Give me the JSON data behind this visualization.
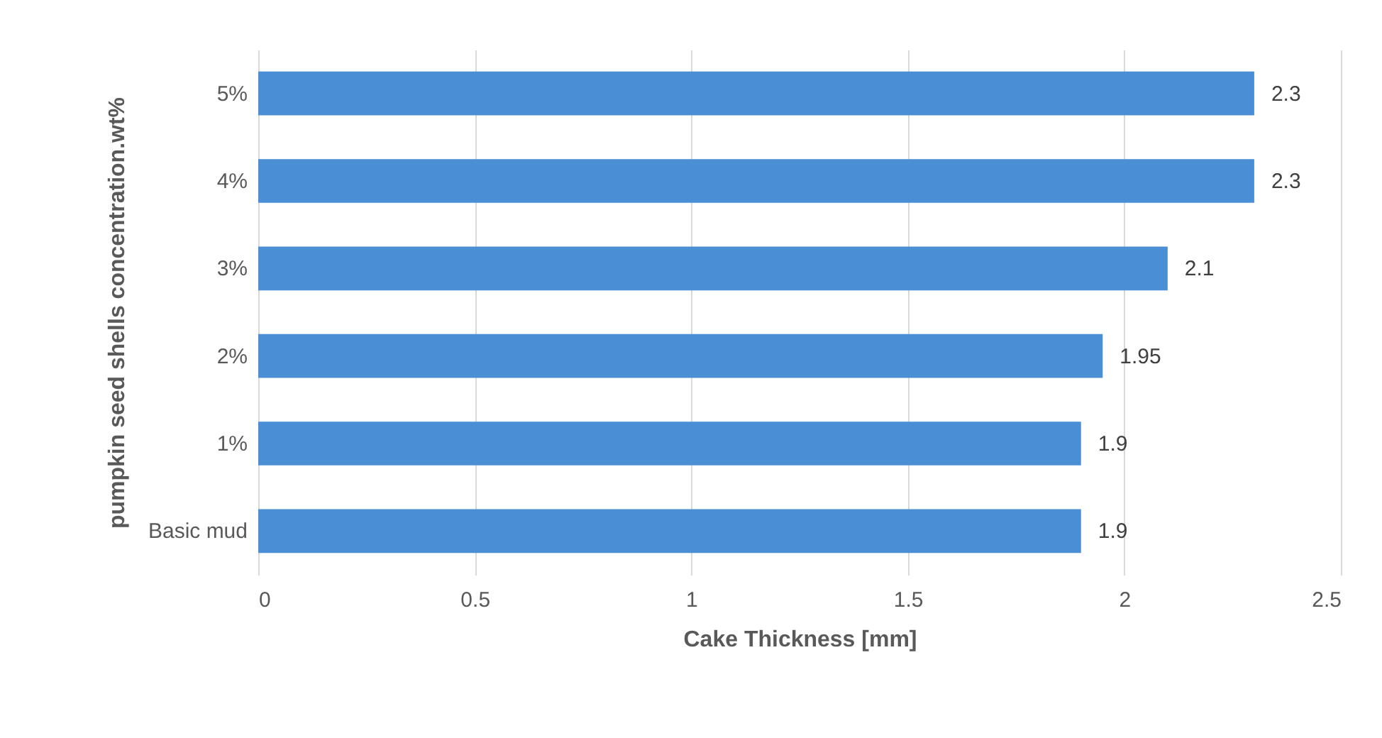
{
  "chart_data": {
    "type": "bar",
    "orientation": "horizontal",
    "xlabel": "Cake Thickness [mm]",
    "ylabel": "pumpkin seed shells concentration.wt%",
    "categories": [
      "5%",
      "4%",
      "3%",
      "2%",
      "1%",
      "Basic mud"
    ],
    "values": [
      2.3,
      2.3,
      2.1,
      1.95,
      1.9,
      1.9
    ],
    "color": "#4a8fd6",
    "xlim": [
      0,
      2.5
    ],
    "xticks": [
      0,
      0.5,
      1,
      1.5,
      2,
      2.5
    ],
    "grid": "x",
    "data_labels": true
  }
}
